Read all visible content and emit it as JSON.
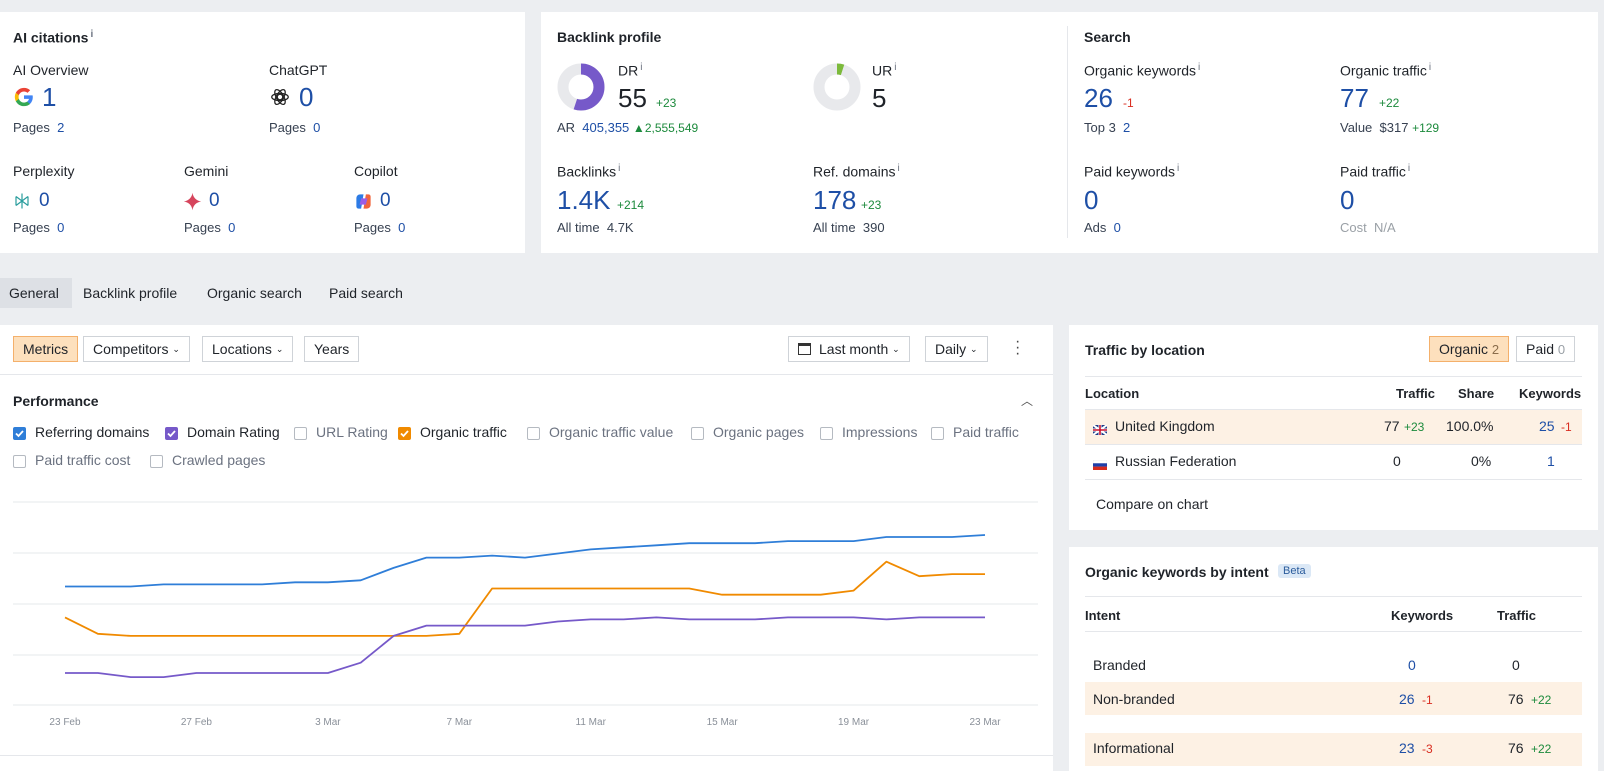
{
  "ai_citations": {
    "title": "AI citations",
    "info": "i",
    "ai_overview": {
      "label": "AI Overview",
      "value": "1",
      "pages_label": "Pages",
      "pages_value": "2"
    },
    "chatgpt": {
      "label": "ChatGPT",
      "value": "0",
      "pages_label": "Pages",
      "pages_value": "0"
    },
    "perplexity": {
      "label": "Perplexity",
      "value": "0",
      "pages_label": "Pages",
      "pages_value": "0"
    },
    "gemini": {
      "label": "Gemini",
      "value": "0",
      "pages_label": "Pages",
      "pages_value": "0"
    },
    "copilot": {
      "label": "Copilot",
      "value": "0",
      "pages_label": "Pages",
      "pages_value": "0"
    }
  },
  "backlink_profile": {
    "title": "Backlink profile",
    "dr": {
      "label": "DR",
      "value": "55",
      "delta": "+23",
      "fraction": 0.55
    },
    "ar": {
      "label": "AR",
      "value": "405,355",
      "delta": "2,555,549"
    },
    "ur": {
      "label": "UR",
      "value": "5",
      "fraction": 0.05
    },
    "backlinks": {
      "label": "Backlinks",
      "value": "1.4K",
      "delta": "+214",
      "alltime_label": "All time",
      "alltime_value": "4.7K"
    },
    "ref_domains": {
      "label": "Ref. domains",
      "value": "178",
      "delta": "+23",
      "alltime_label": "All time",
      "alltime_value": "390"
    }
  },
  "search": {
    "title": "Search",
    "organic_keywords": {
      "label": "Organic keywords",
      "value": "26",
      "delta": "-1",
      "sub_label": "Top 3",
      "sub_value": "2"
    },
    "organic_traffic": {
      "label": "Organic traffic",
      "value": "77",
      "delta": "+22",
      "sub_label": "Value",
      "sub_value": "$317",
      "sub_delta": "+129"
    },
    "paid_keywords": {
      "label": "Paid keywords",
      "value": "0",
      "sub_label": "Ads",
      "sub_value": "0"
    },
    "paid_traffic": {
      "label": "Paid traffic",
      "value": "0",
      "sub_label": "Cost",
      "sub_value": "N/A"
    }
  },
  "tabs": [
    "General",
    "Backlink profile",
    "Organic search",
    "Paid search"
  ],
  "toolbar": {
    "metrics": "Metrics",
    "competitors": "Competitors",
    "locations": "Locations",
    "years": "Years",
    "period": "Last month",
    "granularity": "Daily"
  },
  "performance": {
    "title": "Performance",
    "checkboxes": [
      {
        "label": "Referring domains",
        "checked": true,
        "color": "#2f7ed8"
      },
      {
        "label": "Domain Rating",
        "checked": true,
        "color": "#7659c9"
      },
      {
        "label": "URL Rating",
        "checked": false
      },
      {
        "label": "Organic traffic",
        "checked": true,
        "color": "#f08a00"
      },
      {
        "label": "Organic traffic value",
        "checked": false
      },
      {
        "label": "Organic pages",
        "checked": false
      },
      {
        "label": "Impressions",
        "checked": false
      },
      {
        "label": "Paid traffic",
        "checked": false
      },
      {
        "label": "Paid traffic cost",
        "checked": false
      },
      {
        "label": "Crawled pages",
        "checked": false
      }
    ]
  },
  "chart_data": {
    "type": "line",
    "x": [
      "23 Feb",
      "24 Feb",
      "25 Feb",
      "26 Feb",
      "27 Feb",
      "28 Feb",
      "1 Mar",
      "2 Mar",
      "3 Mar",
      "4 Mar",
      "5 Mar",
      "6 Mar",
      "7 Mar",
      "8 Mar",
      "9 Mar",
      "10 Mar",
      "11 Mar",
      "12 Mar",
      "13 Mar",
      "14 Mar",
      "15 Mar",
      "16 Mar",
      "17 Mar",
      "18 Mar",
      "19 Mar",
      "20 Mar",
      "21 Mar",
      "22 Mar",
      "23 Mar"
    ],
    "x_ticks": [
      "23 Feb",
      "27 Feb",
      "3 Mar",
      "7 Mar",
      "11 Mar",
      "15 Mar",
      "19 Mar",
      "23 Mar"
    ],
    "series": [
      {
        "name": "Referring domains",
        "color": "#2f7ed8",
        "values": [
          0.59,
          0.59,
          0.59,
          0.6,
          0.6,
          0.6,
          0.6,
          0.61,
          0.61,
          0.62,
          0.68,
          0.73,
          0.73,
          0.74,
          0.73,
          0.75,
          0.77,
          0.78,
          0.79,
          0.8,
          0.8,
          0.8,
          0.81,
          0.81,
          0.81,
          0.83,
          0.83,
          0.83,
          0.84
        ]
      },
      {
        "name": "Organic traffic",
        "color": "#f08a00",
        "values": [
          0.44,
          0.36,
          0.35,
          0.35,
          0.35,
          0.35,
          0.35,
          0.35,
          0.35,
          0.35,
          0.35,
          0.35,
          0.36,
          0.58,
          0.58,
          0.58,
          0.58,
          0.58,
          0.58,
          0.58,
          0.55,
          0.55,
          0.55,
          0.55,
          0.57,
          0.71,
          0.64,
          0.65,
          0.65
        ]
      },
      {
        "name": "Domain Rating",
        "color": "#7659c9",
        "values": [
          0.17,
          0.17,
          0.15,
          0.15,
          0.17,
          0.17,
          0.17,
          0.17,
          0.17,
          0.22,
          0.35,
          0.4,
          0.4,
          0.4,
          0.4,
          0.42,
          0.43,
          0.43,
          0.44,
          0.43,
          0.43,
          0.43,
          0.44,
          0.44,
          0.44,
          0.43,
          0.44,
          0.44,
          0.44
        ]
      }
    ]
  },
  "traffic_by_location": {
    "title": "Traffic by location",
    "organic_label": "Organic",
    "organic_count": "2",
    "paid_label": "Paid",
    "paid_count": "0",
    "headers": [
      "Location",
      "Traffic",
      "Share",
      "Keywords"
    ],
    "rows": [
      {
        "flag": "uk-flag-icon",
        "location": "United Kingdom",
        "traffic": "77",
        "traffic_delta": "+23",
        "share": "100.0%",
        "keywords": "25",
        "keywords_delta": "-1"
      },
      {
        "flag": "ru-flag-icon",
        "location": "Russian Federation",
        "traffic": "0",
        "share": "0%",
        "keywords": "1"
      }
    ],
    "compare": "Compare on chart"
  },
  "keywords_by_intent": {
    "title": "Organic keywords by intent",
    "badge": "Beta",
    "headers": [
      "Intent",
      "Keywords",
      "Traffic"
    ],
    "rows": [
      {
        "intent": "Branded",
        "keywords": "0",
        "traffic": "0"
      },
      {
        "intent": "Non-branded",
        "keywords": "26",
        "keywords_delta": "-1",
        "traffic": "76",
        "traffic_delta": "+22"
      },
      {
        "intent": "Informational",
        "keywords": "23",
        "keywords_delta": "-3",
        "traffic": "76",
        "traffic_delta": "+22"
      }
    ]
  }
}
